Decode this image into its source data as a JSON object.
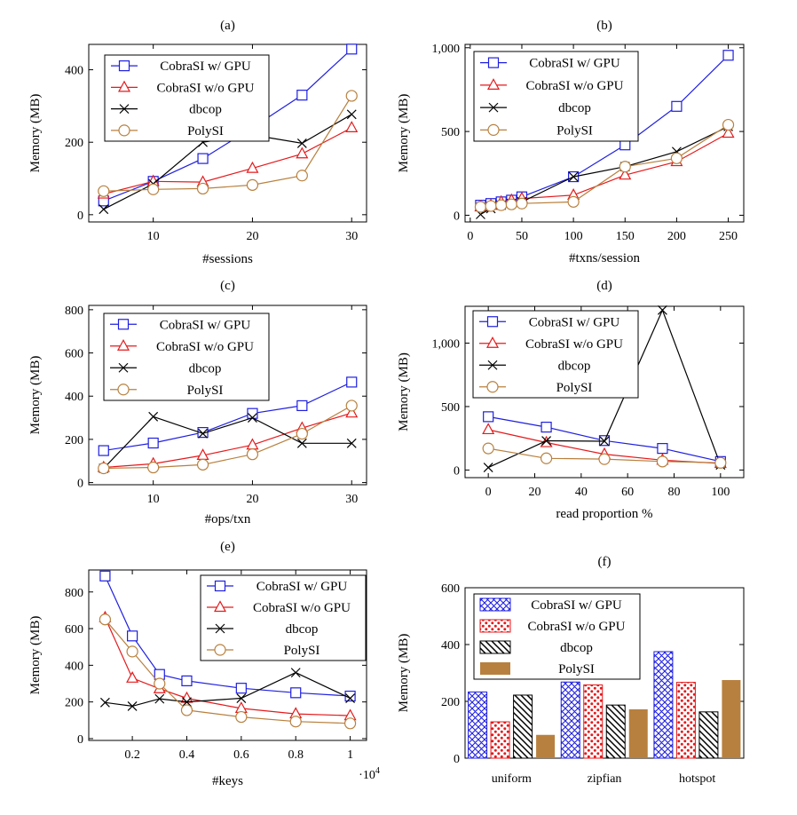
{
  "colors": {
    "cobra_gpu": "#1f1fe0",
    "cobra_cpu": "#e41a1c",
    "dbcop": "#000000",
    "polysi": "#b8803e"
  },
  "chart_data": [
    {
      "id": "a",
      "label": "(a)",
      "type": "line",
      "xlabel": "#sessions",
      "ylabel": "Memory (MB)",
      "xlim": [
        3.5,
        31.5
      ],
      "ylim": [
        -20,
        470
      ],
      "xticks": [
        10,
        20,
        30
      ],
      "xtick_labels": [
        "10",
        "20",
        "30"
      ],
      "yticks": [
        0,
        200,
        400
      ],
      "ytick_labels": [
        "0",
        "200",
        "400"
      ],
      "legend": {
        "position": "top-left"
      },
      "series": [
        {
          "name": "CobraSI w/ GPU",
          "marker": "square",
          "color": "#1f1fe0",
          "x": [
            5,
            10,
            15,
            20,
            25,
            30
          ],
          "y": [
            38,
            92,
            155,
            240,
            330,
            457
          ]
        },
        {
          "name": "CobraSI w/o GPU",
          "marker": "triangle",
          "color": "#e41a1c",
          "x": [
            5,
            10,
            15,
            20,
            25,
            30
          ],
          "y": [
            57,
            92,
            90,
            128,
            168,
            240
          ]
        },
        {
          "name": "dbcop",
          "marker": "cross",
          "color": "#000000",
          "x": [
            5,
            10,
            15,
            20,
            25,
            30
          ],
          "y": [
            15,
            85,
            200,
            220,
            197,
            277
          ]
        },
        {
          "name": "PolySI",
          "marker": "circle",
          "color": "#b8803e",
          "x": [
            5,
            10,
            15,
            20,
            25,
            30
          ],
          "y": [
            65,
            70,
            72,
            82,
            108,
            328
          ]
        }
      ]
    },
    {
      "id": "b",
      "label": "(b)",
      "type": "line",
      "xlabel": "#txns/session",
      "ylabel": "Memory (MB)",
      "xlim": [
        -5,
        265
      ],
      "ylim": [
        -40,
        1020
      ],
      "xticks": [
        0,
        50,
        100,
        150,
        200,
        250
      ],
      "xtick_labels": [
        "0",
        "50",
        "100",
        "150",
        "200",
        "250"
      ],
      "yticks": [
        0,
        500,
        1000
      ],
      "ytick_labels": [
        "0",
        "500",
        "1,000"
      ],
      "legend": {
        "position": "top-left"
      },
      "series": [
        {
          "name": "CobraSI w/ GPU",
          "marker": "square",
          "color": "#1f1fe0",
          "x": [
            10,
            20,
            30,
            40,
            50,
            100,
            150,
            200,
            250
          ],
          "y": [
            60,
            70,
            80,
            90,
            110,
            230,
            420,
            650,
            955
          ]
        },
        {
          "name": "CobraSI w/o GPU",
          "marker": "triangle",
          "color": "#e41a1c",
          "x": [
            10,
            20,
            30,
            40,
            50,
            100,
            150,
            200,
            250
          ],
          "y": [
            50,
            60,
            80,
            90,
            100,
            120,
            240,
            320,
            490
          ]
        },
        {
          "name": "dbcop",
          "marker": "cross",
          "color": "#000000",
          "x": [
            10,
            20,
            30,
            40,
            50,
            100,
            150,
            200,
            250
          ],
          "y": [
            5,
            40,
            60,
            70,
            80,
            230,
            290,
            380,
            530
          ]
        },
        {
          "name": "PolySI",
          "marker": "circle",
          "color": "#b8803e",
          "x": [
            10,
            20,
            30,
            40,
            50,
            100,
            150,
            200,
            250
          ],
          "y": [
            50,
            55,
            60,
            65,
            70,
            80,
            290,
            340,
            540
          ]
        }
      ]
    },
    {
      "id": "c",
      "label": "(c)",
      "type": "line",
      "xlabel": "#ops/txn",
      "ylabel": "Memory (MB)",
      "xlim": [
        3.5,
        31.5
      ],
      "ylim": [
        -10,
        820
      ],
      "xticks": [
        10,
        20,
        30
      ],
      "xtick_labels": [
        "10",
        "20",
        "30"
      ],
      "yticks": [
        0,
        200,
        400,
        600,
        800
      ],
      "ytick_labels": [
        "0",
        "200",
        "400",
        "600",
        "800"
      ],
      "legend": {
        "position": "top-left"
      },
      "series": [
        {
          "name": "CobraSI w/ GPU",
          "marker": "square",
          "color": "#1f1fe0",
          "x": [
            5,
            10,
            15,
            20,
            25,
            30
          ],
          "y": [
            148,
            183,
            232,
            320,
            356,
            465
          ]
        },
        {
          "name": "CobraSI w/o GPU",
          "marker": "triangle",
          "color": "#e41a1c",
          "x": [
            5,
            10,
            15,
            20,
            25,
            30
          ],
          "y": [
            70,
            87,
            126,
            174,
            252,
            322
          ]
        },
        {
          "name": "dbcop",
          "marker": "cross",
          "color": "#000000",
          "x": [
            5,
            10,
            15,
            20,
            25,
            30
          ],
          "y": [
            66,
            305,
            227,
            300,
            182,
            182
          ]
        },
        {
          "name": "PolySI",
          "marker": "circle",
          "color": "#b8803e",
          "x": [
            5,
            10,
            15,
            20,
            25,
            30
          ],
          "y": [
            66,
            70,
            83,
            131,
            226,
            356
          ]
        }
      ]
    },
    {
      "id": "d",
      "label": "(d)",
      "type": "line",
      "xlabel": "read proportion %",
      "ylabel": "Memory (MB)",
      "xlim": [
        -10,
        110
      ],
      "ylim": [
        -60,
        1290
      ],
      "xticks": [
        0,
        20,
        40,
        60,
        80,
        100
      ],
      "xtick_labels": [
        "0",
        "20",
        "40",
        "60",
        "80",
        "100"
      ],
      "yticks": [
        0,
        500,
        1000
      ],
      "ytick_labels": [
        "0",
        "500",
        "1,000"
      ],
      "legend": {
        "position": "top-left"
      },
      "series": [
        {
          "name": "CobraSI w/ GPU",
          "marker": "square",
          "color": "#1f1fe0",
          "x": [
            0,
            25,
            50,
            75,
            100
          ],
          "y": [
            420,
            338,
            232,
            170,
            67
          ]
        },
        {
          "name": "CobraSI w/o GPU",
          "marker": "triangle",
          "color": "#e41a1c",
          "x": [
            0,
            25,
            50,
            75,
            100
          ],
          "y": [
            318,
            216,
            125,
            78,
            52
          ]
        },
        {
          "name": "dbcop",
          "marker": "cross",
          "color": "#000000",
          "x": [
            0,
            25,
            50,
            75,
            100
          ],
          "y": [
            20,
            230,
            227,
            1260,
            40
          ]
        },
        {
          "name": "PolySI",
          "marker": "circle",
          "color": "#b8803e",
          "x": [
            0,
            25,
            50,
            75,
            100
          ],
          "y": [
            170,
            92,
            86,
            67,
            57
          ]
        }
      ]
    },
    {
      "id": "e",
      "label": "(e)",
      "type": "line",
      "xlabel": "#keys",
      "ylabel": "Memory (MB)",
      "xlim": [
        0.04,
        1.06
      ],
      "ylim": [
        -10,
        920
      ],
      "xticks": [
        0.2,
        0.4,
        0.6,
        0.8,
        1.0
      ],
      "xtick_labels": [
        "0.2",
        "0.4",
        "0.6",
        "0.8",
        "1"
      ],
      "yticks": [
        0,
        200,
        400,
        600,
        800
      ],
      "ytick_labels": [
        "0",
        "200",
        "400",
        "600",
        "800"
      ],
      "x_multiplier": "·10",
      "x_multiplier_exp": "4",
      "legend": {
        "position": "top-right"
      },
      "series": [
        {
          "name": "CobraSI w/ GPU",
          "marker": "square",
          "color": "#1f1fe0",
          "x": [
            0.1,
            0.2,
            0.3,
            0.4,
            0.6,
            0.8,
            1.0
          ],
          "y": [
            887,
            560,
            350,
            315,
            275,
            250,
            232
          ]
        },
        {
          "name": "CobraSI w/o GPU",
          "marker": "triangle",
          "color": "#e41a1c",
          "x": [
            0.1,
            0.2,
            0.3,
            0.4,
            0.6,
            0.8,
            1.0
          ],
          "y": [
            660,
            330,
            272,
            220,
            165,
            135,
            125
          ]
        },
        {
          "name": "dbcop",
          "marker": "cross",
          "color": "#000000",
          "x": [
            0.1,
            0.2,
            0.3,
            0.4,
            0.6,
            0.8,
            1.0
          ],
          "y": [
            197,
            177,
            217,
            200,
            220,
            360,
            220
          ]
        },
        {
          "name": "PolySI",
          "marker": "circle",
          "color": "#b8803e",
          "x": [
            0.1,
            0.2,
            0.3,
            0.4,
            0.6,
            0.8,
            1.0
          ],
          "y": [
            650,
            475,
            300,
            155,
            118,
            93,
            83
          ]
        }
      ]
    },
    {
      "id": "f",
      "label": "(f)",
      "type": "bar",
      "xlabel": "",
      "ylabel": "Memory (MB)",
      "ylim": [
        0,
        600
      ],
      "yticks": [
        0,
        200,
        400,
        600
      ],
      "ytick_labels": [
        "0",
        "200",
        "400",
        "600"
      ],
      "categories": [
        "uniform",
        "zipfian",
        "hotspot"
      ],
      "legend": {
        "position": "top-left"
      },
      "series": [
        {
          "name": "CobraSI w/ GPU",
          "pattern": "crosshatch",
          "color": "#1f1fe0",
          "values": [
            233,
            268,
            375
          ]
        },
        {
          "name": "CobraSI w/o GPU",
          "pattern": "dots",
          "color": "#e41a1c",
          "values": [
            128,
            258,
            267
          ]
        },
        {
          "name": "dbcop",
          "pattern": "diagonal",
          "color": "#000000",
          "values": [
            222,
            187,
            163
          ]
        },
        {
          "name": "PolySI",
          "pattern": "solid",
          "color": "#b8803e",
          "values": [
            82,
            172,
            275
          ]
        }
      ]
    }
  ]
}
